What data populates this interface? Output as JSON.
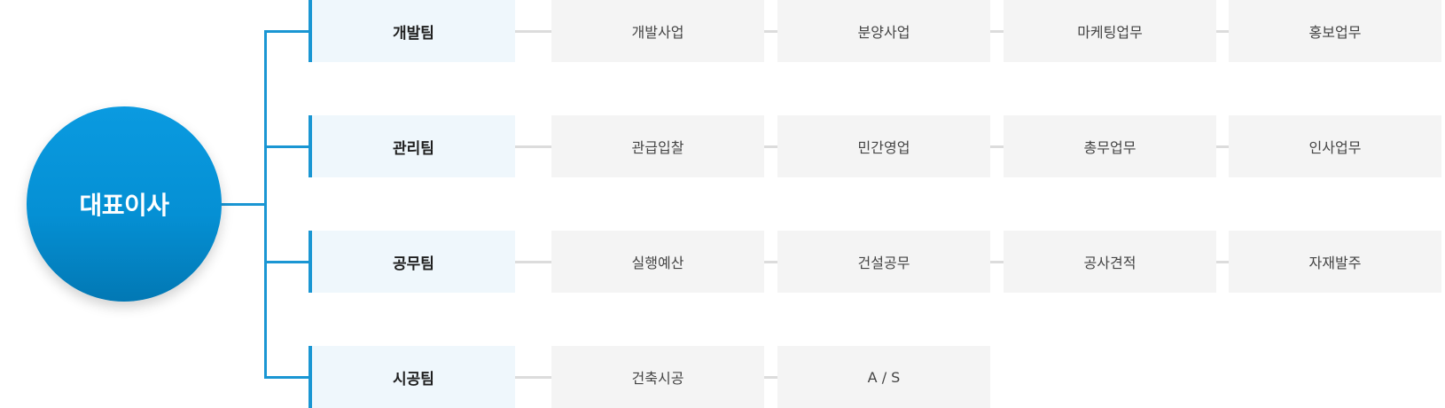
{
  "ceo": {
    "label": "대표이사"
  },
  "teams": [
    {
      "name": "개발팀",
      "tasks": [
        "개발사업",
        "분양사업",
        "마케팅업무",
        "홍보업무"
      ]
    },
    {
      "name": "관리팀",
      "tasks": [
        "관급입찰",
        "민간영업",
        "총무업무",
        "인사업무"
      ]
    },
    {
      "name": "공무팀",
      "tasks": [
        "실행예산",
        "건설공무",
        "공사견적",
        "자재발주"
      ]
    },
    {
      "name": "시공팀",
      "tasks": [
        "건축시공",
        "A / S"
      ]
    }
  ],
  "colors": {
    "accent": "#1a96d3",
    "ceo_fill": "#0590d4",
    "team_fill": "#eff7fc",
    "task_fill": "#f4f4f4",
    "connector_gray": "#dcdcdc"
  }
}
